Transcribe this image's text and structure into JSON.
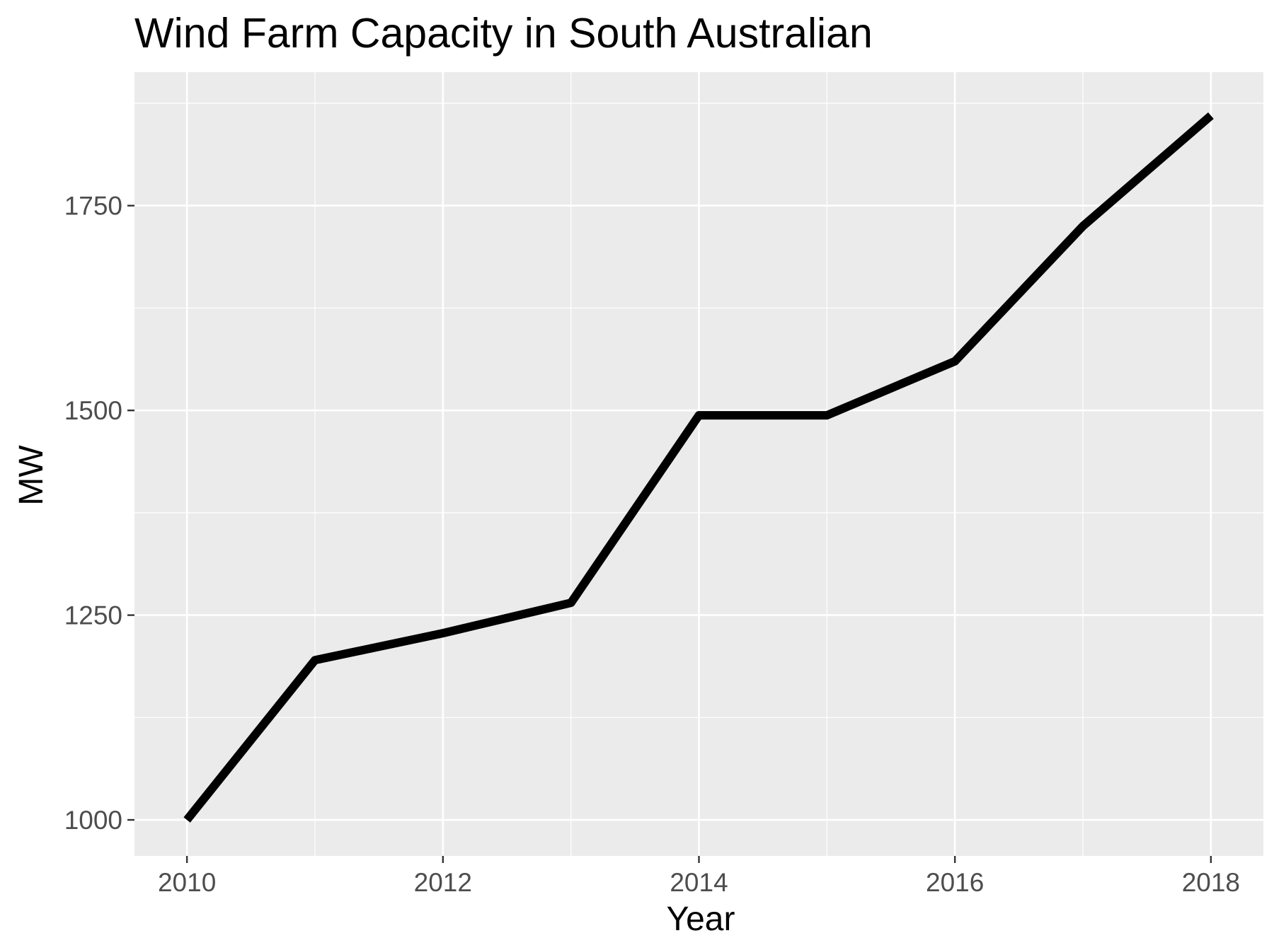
{
  "chart_data": {
    "type": "line",
    "title": "Wind Farm Capacity in South Australian",
    "xlabel": "Year",
    "ylabel": "MW",
    "x": [
      2010,
      2011,
      2012,
      2013,
      2014,
      2015,
      2016,
      2017,
      2018
    ],
    "series": [
      {
        "values": [
          1000,
          1195,
          1228,
          1265,
          1494,
          1494,
          1560,
          1725,
          1860
        ]
      }
    ],
    "xlim": [
      2009.59,
      2018.41
    ],
    "ylim": [
      956,
      1913
    ],
    "x_ticks": [
      2010,
      2012,
      2014,
      2016,
      2018
    ],
    "y_ticks": [
      1000,
      1250,
      1500,
      1750
    ],
    "x_tick_labels": [
      "2010",
      "2012",
      "2014",
      "2016",
      "2018"
    ],
    "y_tick_labels": [
      "1000",
      "1250",
      "1500",
      "1750"
    ],
    "grid": true,
    "legend": "none",
    "colors": {
      "panel_background": "#ebebeb",
      "grid_major": "#ffffff",
      "grid_minor": "#f6f6f6",
      "line": "#000000",
      "tick_text": "#4d4d4d",
      "tick_mark": "#333333"
    }
  }
}
